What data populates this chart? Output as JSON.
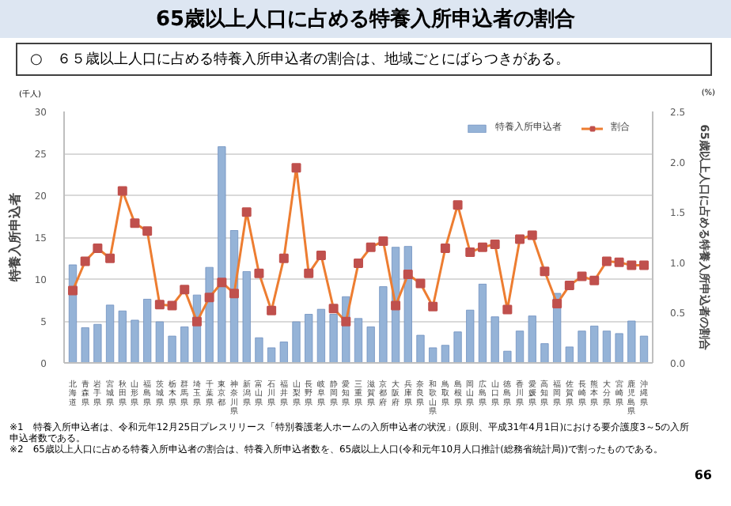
{
  "chart_data": {
    "type": "bar",
    "title": "65歳以上人口に占める特養入所申込者の割合",
    "subtitle": "○　６５歳以上人口に占める特養入所申込者の割合は、地域ごとにばらつきがある。",
    "ylabel": "特養入所申込者",
    "y2label": "65歳以上人口に占める特養入所申込者の割合",
    "categories": [
      "北海道",
      "青森県",
      "岩手県",
      "宮城県",
      "秋田県",
      "山形県",
      "福島県",
      "茨城県",
      "栃木県",
      "群馬県",
      "埼玉県",
      "千葉県",
      "東京都",
      "神奈川県",
      "新潟県",
      "富山県",
      "石川県",
      "福井県",
      "山梨県",
      "長野県",
      "岐阜県",
      "静岡県",
      "愛知県",
      "三重県",
      "滋賀県",
      "京都府",
      "大阪府",
      "兵庫県",
      "奈良県",
      "和歌山県",
      "鳥取県",
      "島根県",
      "岡山県",
      "広島県",
      "山口県",
      "徳島県",
      "香川県",
      "愛媛県",
      "高知県",
      "福岡県",
      "佐賀県",
      "長崎県",
      "熊本県",
      "大分県",
      "宮崎県",
      "鹿児島県",
      "沖縄県"
    ],
    "series": [
      {
        "name": "特養入所申込者",
        "color": "#95b3d7",
        "values": [
          11.7,
          4.2,
          4.6,
          6.9,
          6.2,
          5.1,
          7.6,
          4.9,
          3.2,
          4.3,
          8.1,
          11.4,
          25.8,
          15.8,
          10.9,
          3.0,
          1.8,
          2.5,
          4.9,
          5.8,
          6.4,
          5.8,
          7.9,
          5.3,
          4.3,
          9.1,
          13.8,
          13.9,
          3.3,
          1.8,
          2.1,
          3.7,
          6.3,
          9.4,
          5.5,
          1.4,
          3.8,
          5.6,
          2.3,
          8.3,
          1.9,
          3.8,
          4.4,
          3.8,
          3.5,
          5.0,
          3.2
        ]
      },
      {
        "name": "割合",
        "type": "line",
        "axis": "y2",
        "color": "#ed7d31",
        "marker": "square",
        "values": [
          0.72,
          1.01,
          1.14,
          1.04,
          1.71,
          1.39,
          1.31,
          0.58,
          0.57,
          0.73,
          0.41,
          0.65,
          0.8,
          0.69,
          1.5,
          0.89,
          0.52,
          1.04,
          1.94,
          0.89,
          1.07,
          0.54,
          0.41,
          0.99,
          1.15,
          1.21,
          0.57,
          0.88,
          0.79,
          0.56,
          1.14,
          1.57,
          1.1,
          1.15,
          1.18,
          0.53,
          1.23,
          1.27,
          0.91,
          0.59,
          0.77,
          0.86,
          0.82,
          1.01,
          1.0,
          0.97,
          0.97
        ]
      }
    ],
    "ylim": [
      0,
      30
    ],
    "yticks": [
      0,
      5,
      10,
      15,
      20,
      25,
      30
    ],
    "y2lim": [
      0,
      2.5
    ],
    "y2ticks": [
      {
        "value": 0,
        "label": "0.0"
      },
      {
        "value": 0.5,
        "label": "0.5"
      },
      {
        "value": 1,
        "label": "1.0"
      },
      {
        "value": 1.5,
        "label": "1.5"
      },
      {
        "value": 2,
        "label": "2.0"
      },
      {
        "value": 2.5,
        "label": "2.5"
      }
    ],
    "grid": "y",
    "legend": "top right",
    "annotations": [
      "(千人)",
      "(%)",
      "※1　特養入所申込者は、令和元年12月25日プレスリリース「特別養護老人ホームの入所申込者の状況」(原則、平成31年4月1日)における要介護度3～5の入所申込者数である。",
      "※2　65歳以上人口に占める特養入所申込者の割合は、特養入所申込者数を、65歳以上人口(令和元年10月人口推計(総務省統計局))で割ったものである。",
      "66"
    ]
  }
}
